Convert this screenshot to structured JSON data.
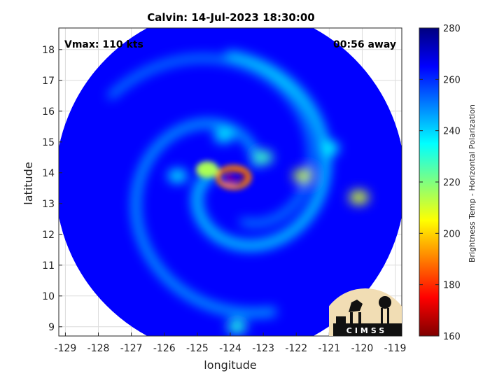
{
  "chart_data": {
    "type": "heatmap",
    "title": "Calvin: 14-Jul-2023 18:30:00",
    "xlabel": "longitude",
    "ylabel": "latitude",
    "xlim": [
      -129.2,
      -118.8
    ],
    "ylim": [
      8.7,
      18.7
    ],
    "xticks": [
      -129,
      -128,
      -127,
      -126,
      -125,
      -124,
      -123,
      -122,
      -121,
      -120,
      -119
    ],
    "yticks": [
      9,
      10,
      11,
      12,
      13,
      14,
      15,
      16,
      17,
      18
    ],
    "grid": true,
    "annotations": {
      "vmax": "Vmax: 110 kts",
      "time_away": "00:56 away"
    },
    "center": {
      "lon": -124.0,
      "lat": 13.7
    },
    "swath_radius_deg": 5.3,
    "colorbar": {
      "label": "Brightness Temp - Horizontal Polarization",
      "min": 160,
      "max": 280,
      "ticks": [
        160,
        180,
        200,
        220,
        240,
        260,
        280
      ],
      "colormap": "jet-reversed"
    },
    "background_value": 265,
    "features": [
      {
        "kind": "eye",
        "lon": -124.0,
        "lat": 13.7,
        "value": 272
      },
      {
        "kind": "eyewall",
        "lon": -123.9,
        "lat": 13.85,
        "value": 190
      },
      {
        "kind": "inner_band",
        "lon": -124.7,
        "lat": 14.1,
        "value": 215
      },
      {
        "kind": "rainband",
        "lon": -123.0,
        "lat": 14.5,
        "value": 228
      },
      {
        "kind": "rainband",
        "lon": -121.8,
        "lat": 13.9,
        "value": 212
      },
      {
        "kind": "rainband",
        "lon": -120.1,
        "lat": 13.2,
        "value": 210
      },
      {
        "kind": "rainband",
        "lon": -121.0,
        "lat": 14.8,
        "value": 235
      },
      {
        "kind": "rainband",
        "lon": -124.2,
        "lat": 15.2,
        "value": 238
      },
      {
        "kind": "rainband",
        "lon": -125.6,
        "lat": 13.9,
        "value": 238
      },
      {
        "kind": "rainband",
        "lon": -123.8,
        "lat": 9.0,
        "value": 232
      }
    ]
  },
  "logo": {
    "text": "CIMSS"
  }
}
